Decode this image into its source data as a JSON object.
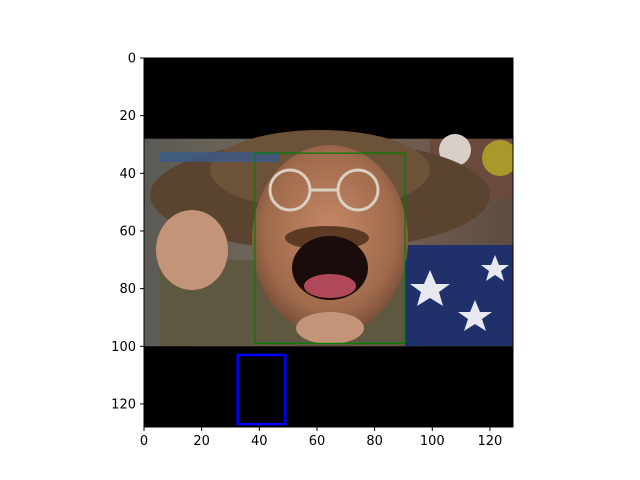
{
  "figure": {
    "image_extent": {
      "x": [
        0,
        128
      ],
      "y": [
        128,
        0
      ]
    },
    "x_ticks": [
      0,
      20,
      40,
      60,
      80,
      100,
      120
    ],
    "y_ticks": [
      0,
      20,
      40,
      60,
      80,
      100,
      120
    ],
    "photo_band": {
      "y_range": [
        28,
        100
      ]
    },
    "boxes": [
      {
        "name": "face-box",
        "color": "#008000",
        "x_range": [
          38.5,
          90.5
        ],
        "y_range": [
          33,
          99
        ]
      },
      {
        "name": "empty-box",
        "color": "#0000ff",
        "x_range": [
          32.5,
          49
        ],
        "y_range": [
          103,
          127
        ]
      }
    ],
    "colors": {
      "background_letterbox": "#000000",
      "flag_blue": "#20306a",
      "skin": "#b07a5c",
      "hat": "#5a4430"
    }
  }
}
